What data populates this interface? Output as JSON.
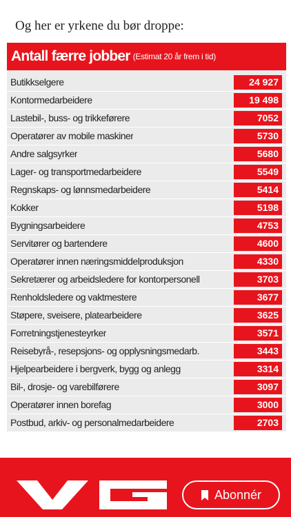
{
  "intro_text": "Og her er yrkene du bør droppe:",
  "table": {
    "title": "Antall færre jobber",
    "subtitle": "(Estimat 20 år frem i tid)",
    "rows": [
      {
        "label": "Butikkselgere",
        "value": "24 927"
      },
      {
        "label": "Kontormedarbeidere",
        "value": "19 498"
      },
      {
        "label": "Lastebil-, buss- og trikkeførere",
        "value": "7052"
      },
      {
        "label": "Operatører av mobile maskiner",
        "value": "5730"
      },
      {
        "label": "Andre salgsyrker",
        "value": "5680"
      },
      {
        "label": "Lager- og transportmedarbeidere",
        "value": "5549"
      },
      {
        "label": "Regnskaps- og lønnsmedarbeidere",
        "value": "5414"
      },
      {
        "label": "Kokker",
        "value": "5198"
      },
      {
        "label": "Bygningsarbeidere",
        "value": "4753"
      },
      {
        "label": "Servitører og bartendere",
        "value": "4600"
      },
      {
        "label": "Operatører innen næringsmiddelproduksjon",
        "value": "4330"
      },
      {
        "label": "Sekretærer og arbeidsledere for kontorpersonell",
        "value": "3703"
      },
      {
        "label": "Renholdsledere og vaktmestere",
        "value": "3677"
      },
      {
        "label": "Støpere, sveisere, platearbeidere",
        "value": "3625"
      },
      {
        "label": "Forretningstjenesteyrker",
        "value": "3571"
      },
      {
        "label": "Reisebyrå-, resepsjons- og opplysningsmedarb.",
        "value": "3443"
      },
      {
        "label": "Hjelpearbeidere i bergverk, bygg og anlegg",
        "value": "3314"
      },
      {
        "label": "Bil-, drosje- og varebilførere",
        "value": "3097"
      },
      {
        "label": "Operatører innen borefag",
        "value": "3000"
      },
      {
        "label": "Postbud, arkiv- og personalmedarbeidere",
        "value": "2703"
      }
    ]
  },
  "footer": {
    "subscribe_label": "Abonnér",
    "logo_icon": "vg-logo-icon",
    "bookmark_icon": "bookmark-icon"
  },
  "colors": {
    "accent": "#e8141d",
    "row_bg": "#ebebeb"
  }
}
